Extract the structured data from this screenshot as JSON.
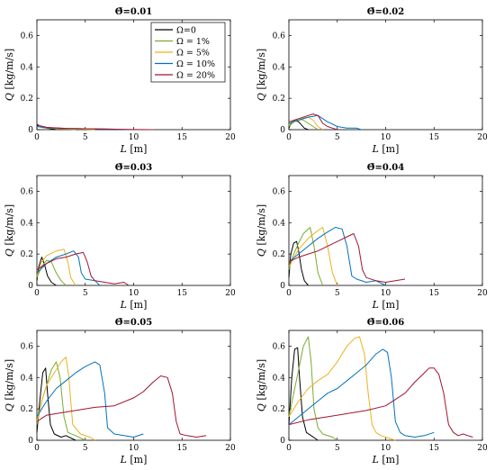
{
  "chart_data": {
    "type": "line",
    "layout": "3x2 grid of subplots",
    "xlabel": "L",
    "xunit": "[m]",
    "ylabel": "Q",
    "yunit": "[kg/m/s]",
    "xlim": [
      0,
      20
    ],
    "ylim": [
      0,
      0.7
    ],
    "xticks": [
      0,
      5,
      10,
      15,
      20
    ],
    "yticks": [
      0,
      0.2,
      0.4,
      0.6
    ],
    "grid": false,
    "legend": {
      "panel": 0,
      "placement": "top-right",
      "entries": [
        "Ω=0",
        "Ω = 1%",
        "Ω = 5%",
        "Ω = 10%",
        "Ω = 20%"
      ]
    },
    "series_colors": [
      "#000000",
      "#77ac30",
      "#edb120",
      "#0072bd",
      "#a2142f"
    ],
    "panels": [
      {
        "title": "Θ̃=0.01",
        "series": [
          {
            "x": [
              0,
              0.2,
              0.5,
              1,
              1.5,
              2
            ],
            "y": [
              0.03,
              0.02,
              0.015,
              0.01,
              0.005,
              0
            ]
          },
          {
            "x": [
              0,
              0.5,
              1,
              2,
              3,
              4
            ],
            "y": [
              0.02,
              0.015,
              0.01,
              0.008,
              0.004,
              0
            ]
          },
          {
            "x": [
              0,
              1,
              2,
              3,
              5,
              6
            ],
            "y": [
              0.02,
              0.012,
              0.008,
              0.005,
              0.003,
              0
            ]
          },
          {
            "x": [
              0,
              1,
              3,
              5,
              7,
              9,
              10
            ],
            "y": [
              0.02,
              0.012,
              0.008,
              0.006,
              0.004,
              0.002,
              0
            ]
          },
          {
            "x": [
              0,
              0.3,
              1,
              3,
              6,
              9,
              12
            ],
            "y": [
              0.035,
              0.025,
              0.015,
              0.008,
              0.005,
              0.002,
              0
            ]
          }
        ]
      },
      {
        "title": "Θ̃=0.02",
        "series": [
          {
            "x": [
              0,
              0.3,
              0.6,
              1,
              1.3,
              1.6,
              2
            ],
            "y": [
              0.01,
              0.05,
              0.06,
              0.05,
              0.03,
              0.01,
              0
            ]
          },
          {
            "x": [
              0,
              0.5,
              1,
              1.5,
              2,
              2.5,
              3
            ],
            "y": [
              0.02,
              0.05,
              0.07,
              0.06,
              0.04,
              0.02,
              0
            ]
          },
          {
            "x": [
              0,
              0.5,
              1,
              2,
              2.5,
              3,
              3.5
            ],
            "y": [
              0.03,
              0.06,
              0.07,
              0.08,
              0.06,
              0.02,
              0
            ]
          },
          {
            "x": [
              0,
              1,
              2,
              3,
              4,
              5,
              6,
              7,
              7.5
            ],
            "y": [
              0.04,
              0.06,
              0.08,
              0.09,
              0.05,
              0.02,
              0.01,
              0.01,
              0
            ]
          },
          {
            "x": [
              0,
              1,
              2,
              2.5,
              3,
              3.5,
              4,
              4.5,
              5
            ],
            "y": [
              0.05,
              0.07,
              0.09,
              0.1,
              0.09,
              0.04,
              0.02,
              0.01,
              0
            ]
          }
        ]
      },
      {
        "title": "Θ̃=0.03",
        "series": [
          {
            "x": [
              0,
              0.2,
              0.5,
              0.8,
              1.1,
              1.5,
              2
            ],
            "y": [
              0.03,
              0.12,
              0.18,
              0.13,
              0.06,
              0.02,
              0
            ]
          },
          {
            "x": [
              0,
              0.5,
              1,
              1.5,
              2,
              2.5,
              3
            ],
            "y": [
              0.05,
              0.12,
              0.16,
              0.15,
              0.08,
              0.03,
              0
            ]
          },
          {
            "x": [
              0,
              0.5,
              1,
              2,
              2.8,
              3.2,
              3.5,
              4
            ],
            "y": [
              0.06,
              0.15,
              0.19,
              0.22,
              0.23,
              0.15,
              0.05,
              0
            ]
          },
          {
            "x": [
              0,
              1,
              2,
              3,
              3.8,
              4.3,
              4.6,
              5,
              6,
              6.5
            ],
            "y": [
              0.08,
              0.14,
              0.18,
              0.2,
              0.22,
              0.18,
              0.08,
              0.04,
              0.03,
              0
            ]
          },
          {
            "x": [
              0,
              1,
              2,
              3,
              4,
              4.8,
              5.2,
              5.6,
              6,
              7,
              8,
              9,
              9.5
            ],
            "y": [
              0.1,
              0.14,
              0.17,
              0.18,
              0.2,
              0.21,
              0.15,
              0.06,
              0.03,
              0.02,
              0.01,
              0.02,
              0
            ]
          }
        ]
      },
      {
        "title": "Θ̃=0.04",
        "series": [
          {
            "x": [
              0,
              0.2,
              0.5,
              0.8,
              1,
              1.3,
              1.6,
              2
            ],
            "y": [
              0.05,
              0.2,
              0.27,
              0.28,
              0.22,
              0.1,
              0.03,
              0
            ]
          },
          {
            "x": [
              0,
              0.5,
              1,
              1.5,
              2.2,
              2.6,
              3,
              3.5
            ],
            "y": [
              0.1,
              0.2,
              0.27,
              0.33,
              0.37,
              0.25,
              0.08,
              0
            ]
          },
          {
            "x": [
              0,
              1,
              2,
              3,
              3.5,
              4,
              4.5,
              5
            ],
            "y": [
              0.12,
              0.23,
              0.3,
              0.35,
              0.37,
              0.25,
              0.08,
              0
            ]
          },
          {
            "x": [
              0,
              1,
              2,
              3,
              4,
              4.8,
              5.5,
              6,
              6.5,
              7,
              8,
              9,
              10
            ],
            "y": [
              0.15,
              0.2,
              0.25,
              0.3,
              0.34,
              0.37,
              0.36,
              0.25,
              0.06,
              0.04,
              0.02,
              0.03,
              0
            ]
          },
          {
            "x": [
              0,
              1,
              2,
              3,
              4,
              5,
              6,
              6.7,
              7.2,
              7.6,
              8,
              9,
              10,
              11,
              12
            ],
            "y": [
              0.15,
              0.18,
              0.2,
              0.22,
              0.25,
              0.28,
              0.31,
              0.33,
              0.25,
              0.1,
              0.05,
              0.03,
              0.02,
              0.03,
              0.04
            ]
          }
        ]
      },
      {
        "title": "Θ̃=0.05",
        "series": [
          {
            "x": [
              0,
              0.3,
              0.6,
              0.9,
              1.1,
              1.4,
              1.8,
              2.5,
              3,
              4
            ],
            "y": [
              0.05,
              0.25,
              0.43,
              0.46,
              0.3,
              0.1,
              0.04,
              0.02,
              0.03,
              0
            ]
          },
          {
            "x": [
              0,
              0.5,
              1,
              1.5,
              2,
              2.4,
              2.8,
              3.2,
              4,
              5
            ],
            "y": [
              0.1,
              0.25,
              0.35,
              0.45,
              0.5,
              0.4,
              0.15,
              0.05,
              0.03,
              0
            ]
          },
          {
            "x": [
              0,
              0.5,
              1,
              1.5,
              2,
              2.5,
              3,
              3.3,
              3.7,
              4.5,
              5.5,
              6
            ],
            "y": [
              0.12,
              0.25,
              0.35,
              0.4,
              0.45,
              0.5,
              0.53,
              0.4,
              0.1,
              0.04,
              0.02,
              0
            ]
          },
          {
            "x": [
              0,
              1,
              2,
              3,
              4,
              5,
              6,
              6.5,
              7,
              7.3,
              8,
              9,
              10,
              11
            ],
            "y": [
              0.15,
              0.25,
              0.33,
              0.38,
              0.43,
              0.47,
              0.5,
              0.48,
              0.3,
              0.08,
              0.04,
              0.03,
              0.02,
              0.04
            ]
          },
          {
            "x": [
              0,
              1,
              2,
              4,
              6,
              8,
              10,
              11,
              12,
              12.8,
              13.5,
              14,
              14.4,
              14.8,
              15.5,
              16.5,
              17.5
            ],
            "y": [
              0.12,
              0.16,
              0.17,
              0.19,
              0.21,
              0.22,
              0.27,
              0.31,
              0.37,
              0.41,
              0.4,
              0.3,
              0.12,
              0.04,
              0.03,
              0.02,
              0.03
            ]
          }
        ]
      },
      {
        "title": "Θ̃=0.06",
        "series": [
          {
            "x": [
              0,
              0.3,
              0.6,
              0.9,
              1.1,
              1.4,
              1.8,
              2.3,
              3
            ],
            "y": [
              0.1,
              0.4,
              0.58,
              0.59,
              0.4,
              0.15,
              0.05,
              0.03,
              0
            ]
          },
          {
            "x": [
              0,
              0.5,
              1,
              1.5,
              2,
              2.3,
              2.6,
              3,
              3.5,
              4.5,
              5
            ],
            "y": [
              0.15,
              0.3,
              0.45,
              0.6,
              0.66,
              0.5,
              0.2,
              0.08,
              0.04,
              0.02,
              0
            ]
          },
          {
            "x": [
              0,
              1,
              2,
              3,
              4,
              5,
              6,
              6.8,
              7.3,
              7.8,
              8.2,
              8.6,
              9,
              9.5,
              10,
              11
            ],
            "y": [
              0.15,
              0.25,
              0.33,
              0.38,
              0.42,
              0.5,
              0.6,
              0.65,
              0.66,
              0.55,
              0.3,
              0.1,
              0.05,
              0.03,
              0.02,
              0
            ]
          },
          {
            "x": [
              0,
              1,
              2,
              3,
              4,
              5,
              6,
              7,
              8,
              9,
              9.7,
              10.2,
              10.6,
              11,
              11.5,
              12,
              13,
              14,
              15
            ],
            "y": [
              0.1,
              0.15,
              0.2,
              0.25,
              0.3,
              0.33,
              0.38,
              0.43,
              0.48,
              0.55,
              0.58,
              0.56,
              0.4,
              0.12,
              0.05,
              0.03,
              0.02,
              0.03,
              0.05
            ]
          },
          {
            "x": [
              0,
              2,
              4,
              6,
              8,
              10,
              12,
              13,
              14,
              14.5,
              15,
              15.5,
              16,
              16.5,
              17,
              17.5,
              18,
              18.5,
              19
            ],
            "y": [
              0.1,
              0.13,
              0.15,
              0.17,
              0.19,
              0.22,
              0.3,
              0.37,
              0.43,
              0.46,
              0.46,
              0.42,
              0.3,
              0.1,
              0.05,
              0.03,
              0.04,
              0.03,
              0.02
            ]
          }
        ]
      }
    ]
  }
}
